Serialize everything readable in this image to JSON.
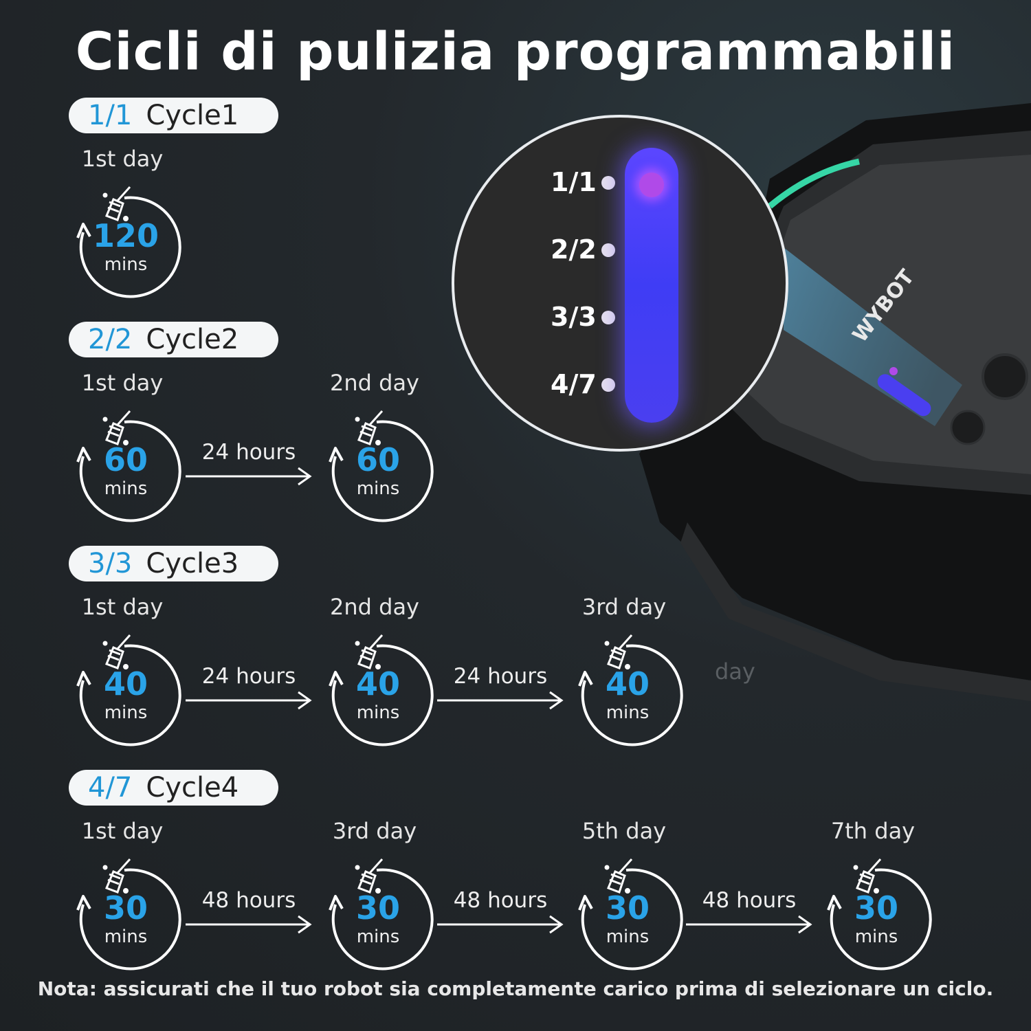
{
  "title": "Cicli di pulizia programmabili",
  "note": "Nota: assicurati che il tuo robot sia completamente carico prima di selezionare un ciclo.",
  "accent_color": "#2196d6",
  "zoom_labels": [
    "1/1",
    "2/2",
    "3/3",
    "4/7"
  ],
  "ghost_text": "day",
  "cycles": [
    {
      "fraction": "1/1",
      "name": "Cycle1",
      "days": [
        {
          "day": "1st day",
          "value": "120",
          "unit": "mins"
        }
      ],
      "gaps": []
    },
    {
      "fraction": "2/2",
      "name": "Cycle2",
      "days": [
        {
          "day": "1st day",
          "value": "60",
          "unit": "mins"
        },
        {
          "day": "2nd day",
          "value": "60",
          "unit": "mins"
        }
      ],
      "gaps": [
        "24 hours"
      ]
    },
    {
      "fraction": "3/3",
      "name": "Cycle3",
      "days": [
        {
          "day": "1st day",
          "value": "40",
          "unit": "mins"
        },
        {
          "day": "2nd day",
          "value": "40",
          "unit": "mins"
        },
        {
          "day": "3rd day",
          "value": "40",
          "unit": "mins"
        }
      ],
      "gaps": [
        "24 hours",
        "24 hours"
      ]
    },
    {
      "fraction": "4/7",
      "name": "Cycle4",
      "days": [
        {
          "day": "1st day",
          "value": "30",
          "unit": "mins"
        },
        {
          "day": "3rd day",
          "value": "30",
          "unit": "mins"
        },
        {
          "day": "5th day",
          "value": "30",
          "unit": "mins"
        },
        {
          "day": "7th day",
          "value": "30",
          "unit": "mins"
        }
      ],
      "gaps": [
        "48 hours",
        "48 hours",
        "48 hours"
      ]
    }
  ]
}
